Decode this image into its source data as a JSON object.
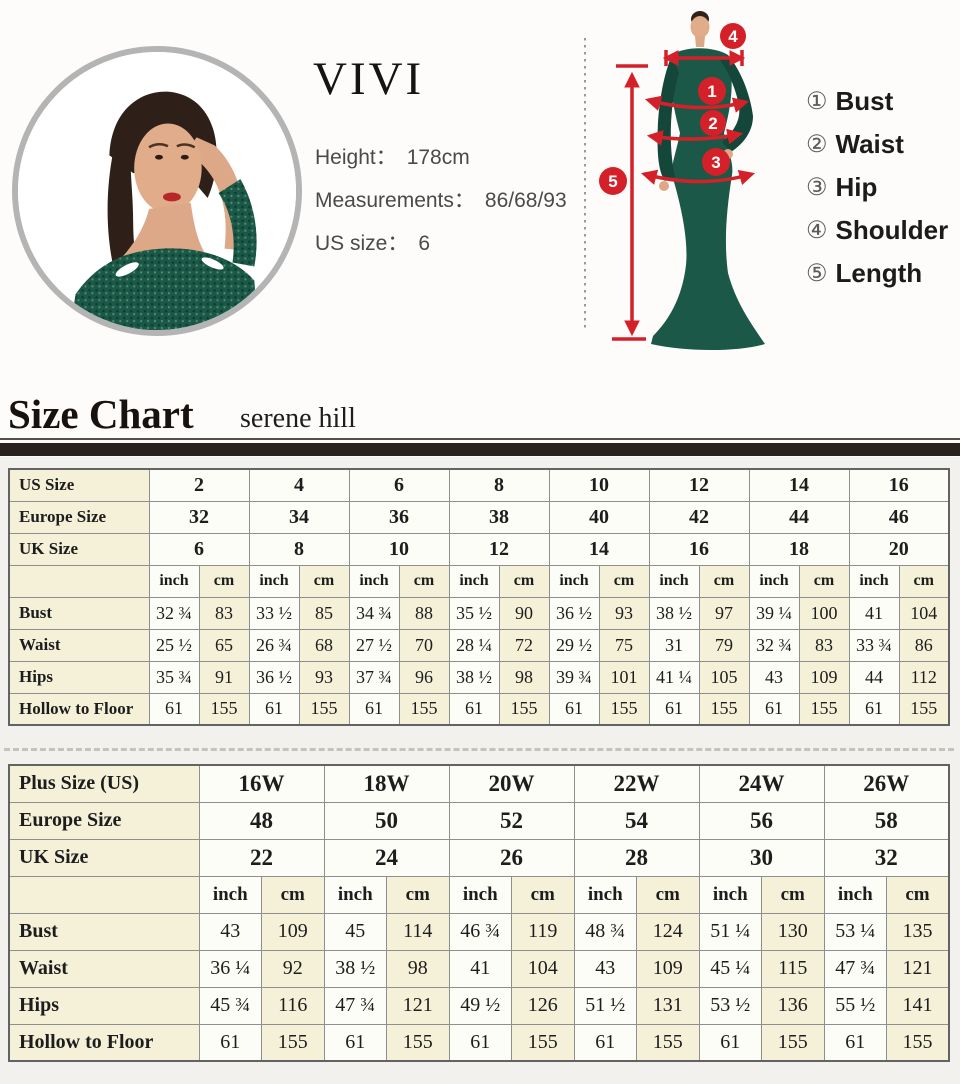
{
  "top": {
    "brand": "VIVI",
    "info": [
      {
        "label": "Height：",
        "value": "178cm"
      },
      {
        "label": "Measurements：",
        "value": "86/68/93"
      },
      {
        "label": "US size：",
        "value": "6"
      }
    ],
    "figure_markers": [
      "1",
      "2",
      "3",
      "4",
      "5"
    ],
    "legend": [
      {
        "num": "①",
        "label": "Bust"
      },
      {
        "num": "②",
        "label": "Waist"
      },
      {
        "num": "③",
        "label": "Hip"
      },
      {
        "num": "④",
        "label": "Shoulder"
      },
      {
        "num": "⑤",
        "label": "Length"
      }
    ]
  },
  "heading": {
    "title": "Size Chart",
    "subtitle": "serene hill"
  },
  "colors": {
    "accent_red": "#d42129",
    "cream_cell": "#f4f1d8",
    "divider_bar": "#2b211c",
    "dress_green": "#1c5847"
  },
  "tables": [
    {
      "id": "standard-sizes",
      "unit_labels": [
        "inch",
        "cm"
      ],
      "size_rows": [
        {
          "label": "US Size",
          "values": [
            "2",
            "4",
            "6",
            "8",
            "10",
            "12",
            "14",
            "16"
          ]
        },
        {
          "label": "Europe Size",
          "values": [
            "32",
            "34",
            "36",
            "38",
            "40",
            "42",
            "44",
            "46"
          ]
        },
        {
          "label": "UK Size",
          "values": [
            "6",
            "8",
            "10",
            "12",
            "14",
            "16",
            "18",
            "20"
          ]
        }
      ],
      "measure_rows": [
        {
          "label": "Bust",
          "cells": [
            [
              "32 ¾",
              "83"
            ],
            [
              "33 ½",
              "85"
            ],
            [
              "34 ¾",
              "88"
            ],
            [
              "35 ½",
              "90"
            ],
            [
              "36 ½",
              "93"
            ],
            [
              "38 ½",
              "97"
            ],
            [
              "39 ¼",
              "100"
            ],
            [
              "41",
              "104"
            ]
          ]
        },
        {
          "label": "Waist",
          "cells": [
            [
              "25 ½",
              "65"
            ],
            [
              "26 ¾",
              "68"
            ],
            [
              "27 ½",
              "70"
            ],
            [
              "28 ¼",
              "72"
            ],
            [
              "29 ½",
              "75"
            ],
            [
              "31",
              "79"
            ],
            [
              "32 ¾",
              "83"
            ],
            [
              "33 ¾",
              "86"
            ]
          ]
        },
        {
          "label": "Hips",
          "cells": [
            [
              "35 ¾",
              "91"
            ],
            [
              "36 ½",
              "93"
            ],
            [
              "37 ¾",
              "96"
            ],
            [
              "38 ½",
              "98"
            ],
            [
              "39 ¾",
              "101"
            ],
            [
              "41 ¼",
              "105"
            ],
            [
              "43",
              "109"
            ],
            [
              "44",
              "112"
            ]
          ]
        },
        {
          "label": "Hollow to Floor",
          "cells": [
            [
              "61",
              "155"
            ],
            [
              "61",
              "155"
            ],
            [
              "61",
              "155"
            ],
            [
              "61",
              "155"
            ],
            [
              "61",
              "155"
            ],
            [
              "61",
              "155"
            ],
            [
              "61",
              "155"
            ],
            [
              "61",
              "155"
            ]
          ]
        }
      ]
    },
    {
      "id": "plus-sizes",
      "unit_labels": [
        "inch",
        "cm"
      ],
      "size_rows": [
        {
          "label": "Plus Size (US)",
          "values": [
            "16W",
            "18W",
            "20W",
            "22W",
            "24W",
            "26W"
          ]
        },
        {
          "label": "Europe Size",
          "values": [
            "48",
            "50",
            "52",
            "54",
            "56",
            "58"
          ]
        },
        {
          "label": "UK Size",
          "values": [
            "22",
            "24",
            "26",
            "28",
            "30",
            "32"
          ]
        }
      ],
      "measure_rows": [
        {
          "label": "Bust",
          "cells": [
            [
              "43",
              "109"
            ],
            [
              "45",
              "114"
            ],
            [
              "46 ¾",
              "119"
            ],
            [
              "48 ¾",
              "124"
            ],
            [
              "51 ¼",
              "130"
            ],
            [
              "53 ¼",
              "135"
            ]
          ]
        },
        {
          "label": "Waist",
          "cells": [
            [
              "36 ¼",
              "92"
            ],
            [
              "38 ½",
              "98"
            ],
            [
              "41",
              "104"
            ],
            [
              "43",
              "109"
            ],
            [
              "45 ¼",
              "115"
            ],
            [
              "47 ¾",
              "121"
            ]
          ]
        },
        {
          "label": "Hips",
          "cells": [
            [
              "45 ¾",
              "116"
            ],
            [
              "47 ¾",
              "121"
            ],
            [
              "49 ½",
              "126"
            ],
            [
              "51 ½",
              "131"
            ],
            [
              "53 ½",
              "136"
            ],
            [
              "55 ½",
              "141"
            ]
          ]
        },
        {
          "label": "Hollow to Floor",
          "cells": [
            [
              "61",
              "155"
            ],
            [
              "61",
              "155"
            ],
            [
              "61",
              "155"
            ],
            [
              "61",
              "155"
            ],
            [
              "61",
              "155"
            ],
            [
              "61",
              "155"
            ]
          ]
        }
      ]
    }
  ]
}
